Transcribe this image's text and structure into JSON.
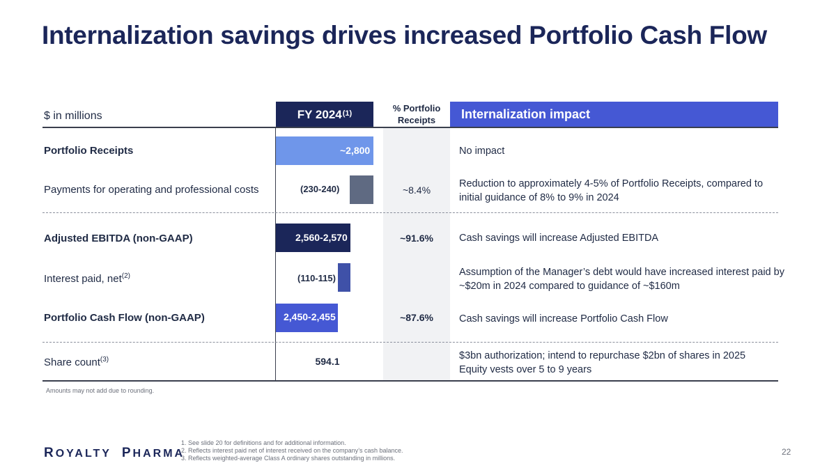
{
  "title": "Internalization savings drives increased Portfolio Cash Flow",
  "header": {
    "units": "$ in millions",
    "fy_label": "FY 2024",
    "fy_sup": "(1)",
    "pct_label_line1": "% Portfolio",
    "pct_label_line2": "Receipts",
    "impact_label": "Internalization impact"
  },
  "rows": {
    "receipts": {
      "label": "Portfolio Receipts",
      "value": "~2,800",
      "pct": "",
      "impact": "No impact",
      "bar_color": "#6f96ea"
    },
    "opex": {
      "label": "Payments for operating and professional costs",
      "value": "(230-240)",
      "pct": "~8.4%",
      "impact_line1": "Reduction to approximately 4-5% of Portfolio Receipts, compared to",
      "impact_line2": "initial guidance of 8% to 9% in 2024",
      "bar_color": "#5f6a82"
    },
    "ebitda": {
      "label": "Adjusted EBITDA (non-GAAP)",
      "value": "2,560-2,570",
      "pct": "~91.6%",
      "impact": "Cash savings will increase Adjusted EBITDA",
      "bar_color": "#1b2659"
    },
    "interest": {
      "label": "Interest paid, net",
      "sup": "(2)",
      "value": "(110-115)",
      "pct": "",
      "impact_line1": "Assumption of the Manager’s debt would have increased interest paid by",
      "impact_line2": "~$20m in 2024 compared to guidance of ~$160m",
      "bar_color": "#3f51a8"
    },
    "cashflow": {
      "label": "Portfolio Cash Flow (non-GAAP)",
      "value": "2,450-2,455",
      "pct": "~87.6%",
      "impact": "Cash savings will increase Portfolio Cash Flow",
      "bar_color": "#4558d4"
    },
    "shares": {
      "label": "Share count",
      "sup": "(3)",
      "value": "594.1",
      "pct": "",
      "impact_line1": "$3bn authorization; intend to repurchase $2bn of shares in 2025",
      "impact_line2": "Equity vests over 5 to 9 years"
    }
  },
  "note": "Amounts may not add due to rounding.",
  "logo": {
    "r": "R",
    "oyalty": "OYALTY",
    "p": "P",
    "harma": "HARMA"
  },
  "footnotes": [
    "See slide 20 for definitions and for additional information.",
    "Reflects interest paid net of interest received on the company’s cash balance.",
    "Reflects weighted-average Class A ordinary shares outstanding in millions."
  ],
  "page_number": "22"
}
